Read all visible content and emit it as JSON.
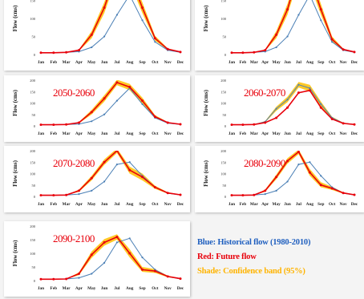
{
  "colors": {
    "historical": "#4a7fb5",
    "future": "#e8000b",
    "band": "#ffc000",
    "decade_label": "#e8000b",
    "legend_blue": "#1f5fbf",
    "legend_red": "#e8000b",
    "legend_yellow": "#ffb400"
  },
  "legend": {
    "blue": "Blue: Historical flow (1980-2010)",
    "red": "Red: Future flow",
    "yellow": "Shade: Confidence band (95%)"
  },
  "chart_data": [
    {
      "type": "line",
      "title": "",
      "ylabel": "Flow (cms)",
      "ylim": [
        0,
        200
      ],
      "yticks": [
        "0",
        "50",
        "100",
        "150",
        "200"
      ],
      "categories": [
        "Jan",
        "Feb",
        "Mar",
        "Apr",
        "May",
        "Jun",
        "Jul",
        "Aug",
        "Sep",
        "Oct",
        "Nov",
        "Dec"
      ],
      "series": [
        {
          "values": [
            5,
            5,
            6,
            8,
            20,
            50,
            110,
            165,
            95,
            35,
            12,
            6
          ]
        },
        {
          "values": [
            5,
            5,
            6,
            12,
            55,
            130,
            235,
            220,
            130,
            45,
            15,
            7
          ]
        }
      ],
      "band": {
        "lower": [
          5,
          5,
          6,
          10,
          45,
          115,
          215,
          200,
          115,
          38,
          13,
          6
        ],
        "upper": [
          5,
          5,
          6,
          14,
          65,
          145,
          255,
          240,
          145,
          52,
          17,
          8
        ]
      }
    },
    {
      "type": "line",
      "title": "",
      "ylabel": "Flow (cms)",
      "ylim": [
        0,
        200
      ],
      "yticks": [
        "0",
        "50",
        "100",
        "150",
        "200"
      ],
      "categories": [
        "Jan",
        "Feb",
        "Mar",
        "Apr",
        "May",
        "Jun",
        "Jul",
        "Aug",
        "Sep",
        "Oct",
        "Nov",
        "Dec"
      ],
      "series": [
        {
          "values": [
            5,
            5,
            6,
            8,
            20,
            50,
            110,
            165,
            95,
            35,
            12,
            6
          ]
        },
        {
          "values": [
            5,
            5,
            6,
            12,
            55,
            125,
            230,
            215,
            125,
            42,
            14,
            7
          ]
        }
      ],
      "band": {
        "lower": [
          5,
          5,
          6,
          10,
          45,
          110,
          210,
          195,
          110,
          36,
          12,
          6
        ],
        "upper": [
          5,
          5,
          6,
          14,
          65,
          140,
          250,
          235,
          140,
          50,
          16,
          8
        ]
      }
    },
    {
      "type": "line",
      "title": "2050-2060",
      "ylabel": "Flow (cms)",
      "ylim": [
        0,
        200
      ],
      "yticks": [
        "0",
        "50",
        "100",
        "150",
        "200"
      ],
      "categories": [
        "Jan",
        "Feb",
        "Mar",
        "Apr",
        "May",
        "Jun",
        "Jul",
        "Aug",
        "Sep",
        "Oct",
        "Nov",
        "Dec"
      ],
      "series": [
        {
          "values": [
            5,
            5,
            6,
            8,
            20,
            50,
            110,
            165,
            95,
            35,
            12,
            6
          ]
        },
        {
          "values": [
            5,
            5,
            6,
            14,
            60,
            120,
            190,
            170,
            110,
            40,
            14,
            7
          ]
        }
      ],
      "band": {
        "lower": [
          5,
          5,
          6,
          11,
          50,
          106,
          178,
          156,
          96,
          33,
          12,
          6
        ],
        "upper": [
          5,
          5,
          6,
          17,
          70,
          134,
          202,
          184,
          124,
          47,
          16,
          8
        ]
      }
    },
    {
      "type": "line",
      "title": "2060-2070",
      "ylabel": "Flow (cms)",
      "ylim": [
        0,
        200
      ],
      "yticks": [
        "0",
        "50",
        "100",
        "150",
        "200"
      ],
      "categories": [
        "Jan",
        "Feb",
        "Mar",
        "Apr",
        "May",
        "Jun",
        "Jul",
        "Aug",
        "Sep",
        "Oct",
        "Nov",
        "Dec"
      ],
      "series": [
        {
          "values": [
            5,
            5,
            6,
            18,
            75,
            115,
            180,
            165,
            95,
            35,
            12,
            6
          ]
        },
        {
          "values": [
            5,
            5,
            6,
            14,
            35,
            80,
            145,
            155,
            80,
            30,
            11,
            6
          ]
        }
      ],
      "band": {
        "lower": [
          5,
          5,
          6,
          15,
          66,
          103,
          168,
          150,
          84,
          30,
          10,
          5
        ],
        "upper": [
          5,
          5,
          6,
          21,
          84,
          127,
          192,
          180,
          106,
          40,
          14,
          7
        ]
      }
    },
    {
      "type": "line",
      "title": "2070-2080",
      "ylabel": "Flow (cms)",
      "ylim": [
        0,
        200
      ],
      "yticks": [
        "0",
        "50",
        "100",
        "150",
        "200"
      ],
      "categories": [
        "Jan",
        "Feb",
        "Mar",
        "Apr",
        "May",
        "Jun",
        "Jul",
        "Aug",
        "Sep",
        "Oct",
        "Nov",
        "Dec"
      ],
      "series": [
        {
          "values": [
            5,
            5,
            6,
            10,
            25,
            65,
            140,
            150,
            90,
            40,
            14,
            6
          ]
        },
        {
          "values": [
            5,
            5,
            6,
            25,
            80,
            150,
            200,
            115,
            85,
            40,
            15,
            7
          ]
        }
      ],
      "band": {
        "lower": [
          5,
          5,
          6,
          20,
          70,
          138,
          190,
          100,
          70,
          33,
          12,
          6
        ],
        "upper": [
          5,
          5,
          6,
          30,
          90,
          162,
          210,
          130,
          100,
          47,
          18,
          8
        ]
      }
    },
    {
      "type": "line",
      "title": "2080-2090",
      "ylabel": "Flow (cms)",
      "ylim": [
        0,
        200
      ],
      "yticks": [
        "0",
        "50",
        "100",
        "150",
        "200"
      ],
      "categories": [
        "Jan",
        "Feb",
        "Mar",
        "Apr",
        "May",
        "Jun",
        "Jul",
        "Aug",
        "Sep",
        "Oct",
        "Nov",
        "Dec"
      ],
      "series": [
        {
          "values": [
            5,
            5,
            6,
            10,
            25,
            65,
            140,
            150,
            90,
            40,
            14,
            6
          ]
        },
        {
          "values": [
            5,
            5,
            6,
            25,
            85,
            155,
            195,
            105,
            50,
            35,
            15,
            7
          ]
        }
      ],
      "band": {
        "lower": [
          5,
          5,
          6,
          20,
          75,
          143,
          185,
          90,
          40,
          28,
          12,
          6
        ],
        "upper": [
          5,
          5,
          6,
          30,
          95,
          167,
          205,
          120,
          62,
          42,
          18,
          8
        ]
      }
    },
    {
      "type": "line",
      "title": "2090-2100",
      "ylabel": "Flow (cms)",
      "ylim": [
        0,
        200
      ],
      "yticks": [
        "0",
        "50",
        "100",
        "150",
        "200"
      ],
      "categories": [
        "Jan",
        "Feb",
        "Mar",
        "Apr",
        "May",
        "Jun",
        "Jul",
        "Aug",
        "Sep",
        "Oct",
        "Nov",
        "Dec"
      ],
      "series": [
        {
          "values": [
            5,
            5,
            6,
            10,
            25,
            65,
            140,
            155,
            85,
            40,
            15,
            6
          ]
        },
        {
          "values": [
            5,
            5,
            6,
            25,
            95,
            140,
            160,
            100,
            40,
            35,
            15,
            7
          ]
        }
      ],
      "band": {
        "lower": [
          5,
          5,
          6,
          20,
          83,
          128,
          150,
          85,
          32,
          28,
          12,
          6
        ],
        "upper": [
          5,
          5,
          6,
          30,
          107,
          152,
          170,
          115,
          50,
          42,
          18,
          8
        ]
      }
    }
  ]
}
